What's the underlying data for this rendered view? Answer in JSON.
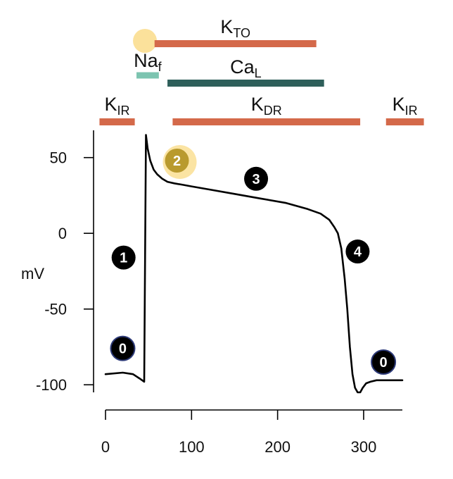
{
  "colors": {
    "potassium": "#d4694a",
    "sodium": "#7cc4b0",
    "calcium": "#2e5f5a",
    "trace": "#000000",
    "phase_badge": "#000000",
    "phase_outline": "#2d3a78",
    "highlight": "#f7c948",
    "highlight_badge": "#b99a2e"
  },
  "axis": {
    "ylabel": "mV",
    "x_ticks": [
      "0",
      "100",
      "200",
      "300"
    ],
    "y_ticks": [
      "50",
      "0",
      "-50",
      "-100"
    ]
  },
  "chart_data": {
    "type": "line",
    "xlim": [
      0,
      345
    ],
    "ylim": [
      -105,
      68
    ],
    "series": [
      {
        "x": [
          0,
          20,
          32,
          40,
          45,
          47,
          49,
          52,
          56,
          60,
          66,
          72,
          80,
          90,
          100,
          120,
          150,
          180,
          210,
          235,
          250,
          260,
          266,
          270,
          274,
          278,
          281,
          284,
          287,
          290,
          293,
          296,
          299,
          303,
          308,
          315,
          325,
          345
        ],
        "y": [
          -93,
          -92,
          -93,
          -96,
          -98,
          65,
          56,
          48,
          42,
          39,
          36,
          34,
          33,
          32,
          31,
          29,
          26,
          23,
          20,
          16,
          13,
          9,
          4,
          0,
          -10,
          -30,
          -50,
          -75,
          -93,
          -102,
          -105,
          -105,
          -102,
          -99,
          -98,
          -97,
          -97,
          -97
        ]
      }
    ]
  },
  "channels": [
    {
      "name": "KIR (resting)",
      "main": "K",
      "sub": "IR",
      "start": -7,
      "end": 34,
      "row": "bottom",
      "color": "potassium"
    },
    {
      "name": "Naf",
      "main": "Na",
      "sub": "f",
      "start": 36,
      "end": 62,
      "row": "naf",
      "color": "sodium"
    },
    {
      "name": "KTO",
      "main": "K",
      "sub": "TO",
      "start": 57,
      "end": 245,
      "row": "top",
      "color": "potassium"
    },
    {
      "name": "CaL",
      "main": "Ca",
      "sub": "L",
      "start": 72,
      "end": 254,
      "row": "middle",
      "color": "calcium"
    },
    {
      "name": "KDR",
      "main": "K",
      "sub": "DR",
      "start": 78,
      "end": 296,
      "row": "bottom",
      "color": "potassium"
    },
    {
      "name": "KIR (late)",
      "main": "K",
      "sub": "IR",
      "start": 326,
      "end": 370,
      "row": "bottom",
      "color": "potassium"
    }
  ],
  "phases": [
    {
      "label": "0",
      "x": 20,
      "y": -76,
      "style": "outlined"
    },
    {
      "label": "1",
      "x": 21,
      "y": -16,
      "style": "solid"
    },
    {
      "label": "2",
      "x": 83,
      "y": 48,
      "style": "highlight"
    },
    {
      "label": "3",
      "x": 175,
      "y": 36,
      "style": "solid"
    },
    {
      "label": "4",
      "x": 293,
      "y": -12,
      "style": "solid"
    },
    {
      "label": "0",
      "x": 323,
      "y": -85,
      "style": "outlined"
    }
  ]
}
